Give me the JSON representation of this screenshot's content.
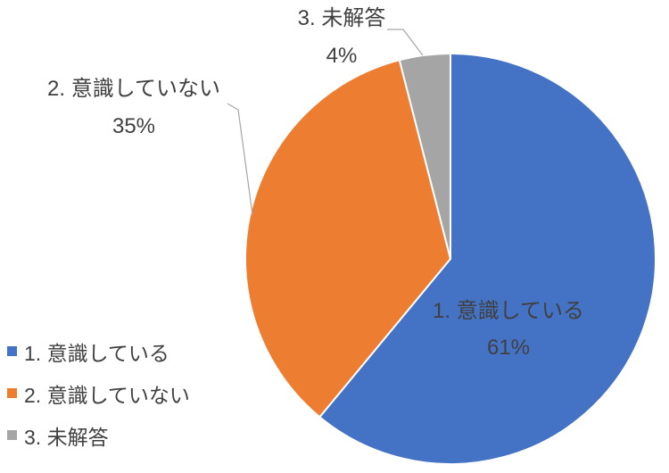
{
  "chart_data": {
    "type": "pie",
    "categories": [
      "1. 意識している",
      "2. 意識していない",
      "3. 未解答"
    ],
    "values": [
      61,
      35,
      4
    ],
    "value_unit": "%",
    "colors": [
      "#4472C4",
      "#ED7D31",
      "#A5A5A5"
    ],
    "start_angle_deg": 0,
    "direction": "clockwise",
    "legend_position": "bottom-left",
    "labels": [
      {
        "text": "1. 意識している",
        "pct": "61%",
        "placement": "inside"
      },
      {
        "text": "2. 意識していない",
        "pct": "35%",
        "placement": "outside-upper-left",
        "leader_line": true
      },
      {
        "text": "3. 未解答",
        "pct": "4%",
        "placement": "outside-top",
        "leader_line": true
      }
    ]
  },
  "colors": {
    "background": "#FFFFFF",
    "label_text": "#404040",
    "leader_line": "#A6A6A6",
    "slice_border": "#FFFFFF"
  }
}
